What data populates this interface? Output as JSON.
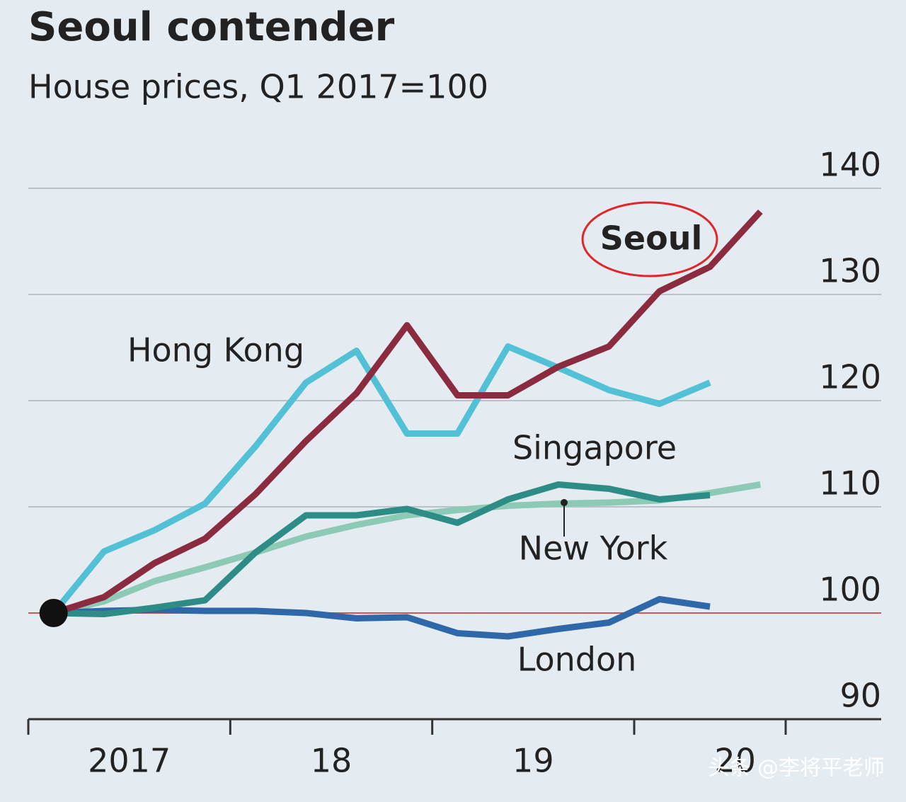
{
  "chart_data": {
    "type": "line",
    "title": "Seoul contender",
    "subtitle": "House prices, Q1 2017=100",
    "x": [
      2017.125,
      2017.375,
      2017.625,
      2017.875,
      2018.125,
      2018.375,
      2018.625,
      2018.875,
      2019.125,
      2019.375,
      2019.625,
      2019.875,
      2020.125,
      2020.375,
      2020.625
    ],
    "xlim": [
      2017,
      2020.75
    ],
    "xticks": [
      2017,
      2018,
      2019,
      2020,
      2020.75
    ],
    "x_labels": [
      {
        "value": 2017.5,
        "label": "2017"
      },
      {
        "value": 2018.5,
        "label": "18"
      },
      {
        "value": 2019.5,
        "label": "19"
      },
      {
        "value": 2020.5,
        "label": "20"
      }
    ],
    "ylim": [
      90,
      140
    ],
    "yticks": [
      90,
      100,
      110,
      120,
      130,
      140
    ],
    "baseline": 100,
    "grid": true,
    "series": [
      {
        "name": "Seoul",
        "color": "#8b2b40",
        "values": [
          100,
          101.5,
          104.7,
          107,
          111.2,
          116.2,
          120.7,
          127.1,
          120.5,
          120.5,
          123.2,
          125.1,
          130.3,
          132.6,
          137.8
        ]
      },
      {
        "name": "Hong Kong",
        "color": "#52c1d6",
        "values": [
          100,
          105.8,
          107.8,
          110.3,
          115.7,
          121.7,
          124.7,
          116.9,
          116.9,
          125.1,
          123.1,
          121,
          119.7,
          121.7,
          null
        ]
      },
      {
        "name": "New York",
        "color": "#8ccab5",
        "values": [
          100,
          101.1,
          103,
          104.3,
          105.7,
          107.2,
          108.3,
          109.2,
          109.7,
          110.1,
          110.3,
          110.4,
          110.6,
          111.3,
          112.1
        ]
      },
      {
        "name": "Singapore",
        "color": "#2e8c86",
        "values": [
          100,
          99.9,
          100.5,
          101.2,
          105.7,
          109.2,
          109.2,
          109.8,
          108.5,
          110.7,
          112.1,
          111.7,
          110.7,
          111.1,
          null
        ]
      },
      {
        "name": "London",
        "color": "#2e68a8",
        "values": [
          100,
          100.2,
          100.3,
          100.2,
          100.2,
          100,
          99.5,
          99.6,
          98.1,
          97.8,
          98.5,
          99.1,
          101.3,
          100.6,
          null
        ]
      }
    ],
    "watermark": "头条 @李将平老师"
  }
}
